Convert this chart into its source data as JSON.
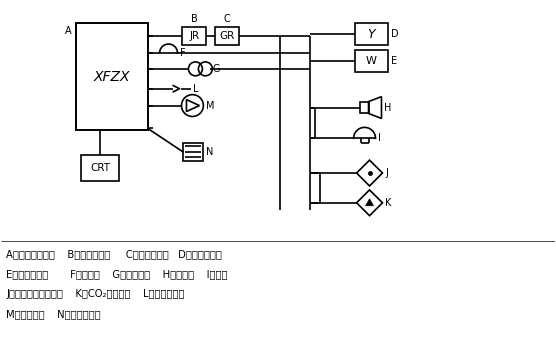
{
  "bg_color": "#ffffff",
  "line_color": "#000000",
  "line_width": 1.2,
  "legend_lines": [
    "A、消防控制中心    B、报警控制器     C、楼层显示器   D、感烟探测器",
    "E、感温探测器       F、通风口    G、消防广播    H、扬声器    I、电话",
    "J、自动喷水灭火系统    K、CO₂灭火系统    L、疏散指示灯",
    "M、消防水泵    N、防火卷帘门"
  ]
}
